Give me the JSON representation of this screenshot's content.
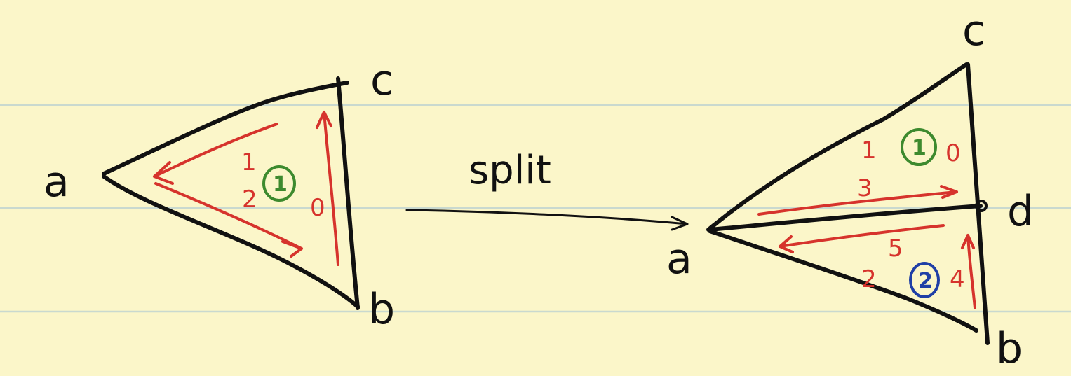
{
  "split_label": "split",
  "left_triangle": {
    "vertices": {
      "a": "a",
      "b": "b",
      "c": "c"
    },
    "edge_numbers": [
      "0",
      "1",
      "2"
    ],
    "face_number": "1",
    "face_color": "#3d8a2e"
  },
  "right_triangles": {
    "vertices": {
      "a": "a",
      "b": "b",
      "c": "c",
      "d": "d"
    },
    "top_face": {
      "edge_numbers": [
        "0",
        "1",
        "3"
      ],
      "face_number": "1",
      "face_color": "#3d8a2e"
    },
    "bottom_face": {
      "edge_numbers": [
        "2",
        "4",
        "5"
      ],
      "face_number": "2",
      "face_color": "#1f3fa6"
    }
  },
  "colors": {
    "ink": "#111111",
    "arrows": "#d6332c",
    "paper": "#fbf6c9",
    "rules": "#c9d9cf"
  }
}
